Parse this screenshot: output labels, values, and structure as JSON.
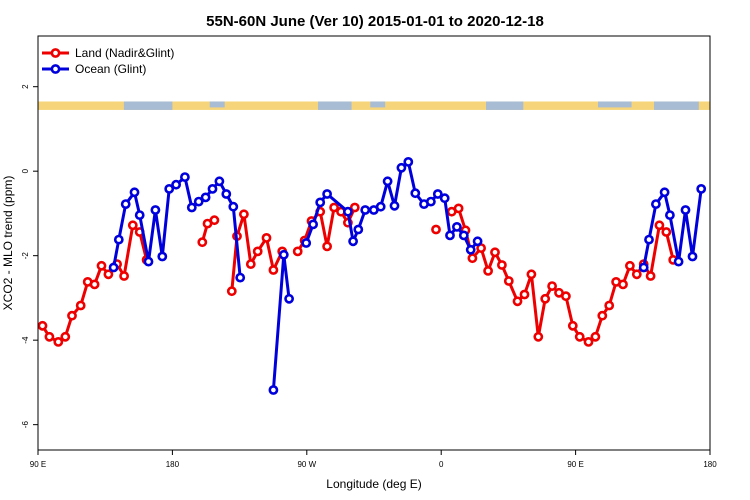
{
  "chart_data": {
    "type": "line",
    "title": "55N-60N June (Ver 10)   2015-01-01 to 2020-12-18",
    "xlabel": "Longitude (deg E)",
    "ylabel": "XCO2 - MLO trend (ppm)",
    "xlim": [
      0,
      360
    ],
    "ylim": [
      -6.6,
      3.2
    ],
    "x_ticks": [
      {
        "value": 0,
        "label": "90 E"
      },
      {
        "value": 72,
        "label": "180"
      },
      {
        "value": 144,
        "label": "90 W"
      },
      {
        "value": 216,
        "label": "0"
      },
      {
        "value": 288,
        "label": "90 E"
      },
      {
        "value": 360,
        "label": "180"
      }
    ],
    "y_ticks": [
      {
        "value": 2,
        "label": "2"
      },
      {
        "value": 0,
        "label": "0"
      },
      {
        "value": -2,
        "label": "-2"
      },
      {
        "value": -4,
        "label": "-4"
      },
      {
        "value": -6,
        "label": "-6"
      }
    ],
    "grid": false,
    "legend": "top-left",
    "map_strip": {
      "y_top": 1.65,
      "y_bottom": 1.45,
      "land_color": "#f6d57a",
      "ocean_color": "#a8bcd4"
    },
    "series": [
      {
        "name": "Land (Nadir&Glint)",
        "color": "#ee0000",
        "segments": [
          [
            [
              2.4,
              -3.66
            ],
            [
              6.1,
              -3.92
            ],
            [
              10.9,
              -4.04
            ],
            [
              14.6,
              -3.92
            ],
            [
              18.2,
              -3.42
            ],
            [
              22.9,
              -3.18
            ],
            [
              26.6,
              -2.62
            ],
            [
              30.3,
              -2.68
            ],
            [
              34.0,
              -2.24
            ],
            [
              37.7,
              -2.44
            ],
            [
              42.4,
              -2.2
            ],
            [
              46.1,
              -2.48
            ],
            [
              50.8,
              -1.28
            ],
            [
              54.5,
              -1.44
            ],
            [
              58.2,
              -2.1
            ]
          ],
          [
            [
              88.0,
              -1.68
            ],
            [
              90.8,
              -1.24
            ],
            [
              94.5,
              -1.16
            ]
          ],
          [
            [
              103.8,
              -2.84
            ],
            [
              106.6,
              -1.54
            ],
            [
              110.3,
              -1.02
            ],
            [
              114.0,
              -2.2
            ],
            [
              117.7,
              -1.9
            ],
            [
              122.4,
              -1.58
            ],
            [
              126.1,
              -2.34
            ],
            [
              130.8,
              -1.9
            ]
          ],
          [
            [
              139.1,
              -1.9
            ],
            [
              142.8,
              -1.64
            ],
            [
              146.5,
              -1.18
            ],
            [
              151.2,
              -0.96
            ],
            [
              154.9,
              -1.78
            ],
            [
              158.6,
              -0.86
            ],
            [
              162.3,
              -0.96
            ],
            [
              166.0,
              -1.22
            ],
            [
              169.7,
              -0.86
            ]
          ],
          [
            [
              213.2,
              -1.38
            ]
          ],
          [
            [
              221.6,
              -0.96
            ],
            [
              225.3,
              -0.88
            ],
            [
              229.0,
              -1.4
            ],
            [
              232.7,
              -2.06
            ],
            [
              237.4,
              -1.82
            ],
            [
              241.1,
              -2.36
            ],
            [
              244.8,
              -1.92
            ],
            [
              248.5,
              -2.22
            ],
            [
              252.2,
              -2.6
            ],
            [
              256.9,
              -3.08
            ],
            [
              260.6,
              -2.92
            ],
            [
              264.3,
              -2.44
            ],
            [
              268.0,
              -3.92
            ],
            [
              271.7,
              -3.02
            ],
            [
              275.4,
              -2.72
            ],
            [
              279.1,
              -2.88
            ],
            [
              282.8,
              -2.96
            ],
            [
              286.5,
              -3.66
            ],
            [
              290.2,
              -3.92
            ],
            [
              294.9,
              -4.04
            ],
            [
              298.6,
              -3.92
            ],
            [
              302.3,
              -3.42
            ],
            [
              306.0,
              -3.18
            ],
            [
              309.7,
              -2.62
            ],
            [
              313.4,
              -2.68
            ],
            [
              317.1,
              -2.24
            ],
            [
              320.8,
              -2.44
            ],
            [
              324.5,
              -2.2
            ],
            [
              328.2,
              -2.48
            ],
            [
              332.9,
              -1.28
            ],
            [
              336.6,
              -1.44
            ],
            [
              340.3,
              -2.1
            ]
          ]
        ]
      },
      {
        "name": "Ocean (Glint)",
        "color": "#0000dd",
        "segments": [
          [
            [
              40.5,
              -2.28
            ],
            [
              43.3,
              -1.62
            ],
            [
              47.0,
              -0.78
            ],
            [
              51.7,
              -0.5
            ],
            [
              54.5,
              -1.04
            ],
            [
              59.2,
              -2.14
            ],
            [
              62.9,
              -0.92
            ],
            [
              66.6,
              -2.02
            ],
            [
              70.3,
              -0.42
            ],
            [
              74.0,
              -0.32
            ],
            [
              78.7,
              -0.14
            ],
            [
              82.4,
              -0.86
            ],
            [
              86.1,
              -0.72
            ],
            [
              89.8,
              -0.62
            ],
            [
              93.5,
              -0.42
            ],
            [
              97.2,
              -0.24
            ],
            [
              100.9,
              -0.54
            ],
            [
              104.6,
              -0.84
            ],
            [
              108.3,
              -2.52
            ]
          ],
          [
            [
              126.1,
              -5.18
            ],
            [
              131.7,
              -1.98
            ],
            [
              134.5,
              -3.02
            ]
          ],
          [
            [
              143.7,
              -1.7
            ],
            [
              147.4,
              -1.26
            ],
            [
              151.2,
              -0.74
            ],
            [
              154.9,
              -0.54
            ],
            [
              166.0,
              -0.96
            ],
            [
              168.8,
              -1.66
            ],
            [
              171.6,
              -1.38
            ],
            [
              175.3,
              -0.92
            ],
            [
              179.9,
              -0.92
            ],
            [
              183.6,
              -0.84
            ],
            [
              187.3,
              -0.24
            ],
            [
              191.0,
              -0.82
            ],
            [
              194.7,
              0.08
            ],
            [
              198.4,
              0.22
            ],
            [
              202.1,
              -0.52
            ],
            [
              206.8,
              -0.78
            ],
            [
              210.5,
              -0.72
            ],
            [
              214.2,
              -0.54
            ],
            [
              217.9,
              -0.64
            ],
            [
              220.7,
              -1.52
            ],
            [
              224.4,
              -1.32
            ],
            [
              228.1,
              -1.52
            ],
            [
              231.8,
              -1.86
            ],
            [
              235.5,
              -1.66
            ]
          ],
          [
            [
              324.5,
              -2.28
            ],
            [
              327.3,
              -1.62
            ],
            [
              331.0,
              -0.78
            ],
            [
              335.7,
              -0.5
            ],
            [
              338.5,
              -1.04
            ],
            [
              343.2,
              -2.14
            ],
            [
              346.9,
              -0.92
            ],
            [
              350.6,
              -2.02
            ],
            [
              355.3,
              -0.42
            ]
          ]
        ]
      }
    ]
  }
}
